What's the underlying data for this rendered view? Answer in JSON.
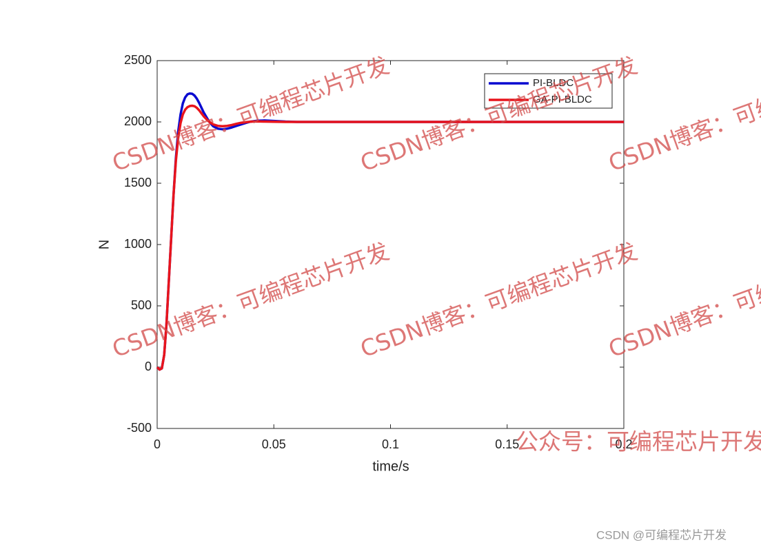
{
  "chart_data": {
    "type": "line",
    "x_label": "time/s",
    "y_label": "N",
    "x": [
      0,
      0.001,
      0.002,
      0.003,
      0.004,
      0.005,
      0.006,
      0.007,
      0.008,
      0.009,
      0.01,
      0.011,
      0.012,
      0.013,
      0.014,
      0.015,
      0.016,
      0.017,
      0.018,
      0.019,
      0.02,
      0.022,
      0.024,
      0.026,
      0.028,
      0.03,
      0.032,
      0.034,
      0.036,
      0.038,
      0.04,
      0.043,
      0.046,
      0.05,
      0.055,
      0.06,
      0.07,
      0.08,
      0.1,
      0.12,
      0.14,
      0.16,
      0.18,
      0.2
    ],
    "series": [
      {
        "name": "PI-BLDC",
        "color": "#0a0ad0",
        "values": [
          0,
          -20,
          -10,
          100,
          350,
          700,
          1050,
          1400,
          1700,
          1920,
          2060,
          2150,
          2200,
          2225,
          2232,
          2230,
          2215,
          2190,
          2155,
          2115,
          2075,
          2010,
          1965,
          1945,
          1940,
          1945,
          1955,
          1968,
          1980,
          1992,
          2002,
          2010,
          2012,
          2008,
          2003,
          2000,
          2000,
          2000,
          2000,
          2000,
          2000,
          2000,
          2000,
          2000
        ]
      },
      {
        "name": "GA-PI-BLDC",
        "color": "#e8141c",
        "values": [
          0,
          -20,
          -10,
          100,
          350,
          700,
          1050,
          1400,
          1680,
          1870,
          1990,
          2060,
          2100,
          2120,
          2130,
          2132,
          2128,
          2115,
          2095,
          2070,
          2045,
          2005,
          1980,
          1968,
          1965,
          1968,
          1975,
          1985,
          1993,
          1998,
          2002,
          2004,
          2003,
          2001,
          2000,
          2000,
          2000,
          2000,
          2000,
          2000,
          2000,
          2000,
          2000,
          2000
        ]
      }
    ],
    "xlim": [
      0,
      0.2
    ],
    "xticks": [
      0,
      0.05,
      0.1,
      0.15,
      0.2
    ],
    "ylim": [
      -500,
      2500
    ],
    "yticks": [
      -500,
      0,
      500,
      1000,
      1500,
      2000,
      2500
    ],
    "grid": false,
    "legend": "top-right",
    "watermarks": [
      "CSDN博客：可编程芯片开发",
      "公众号：可编程芯片开发"
    ],
    "footer": "CSDN @可编程芯片开发"
  }
}
